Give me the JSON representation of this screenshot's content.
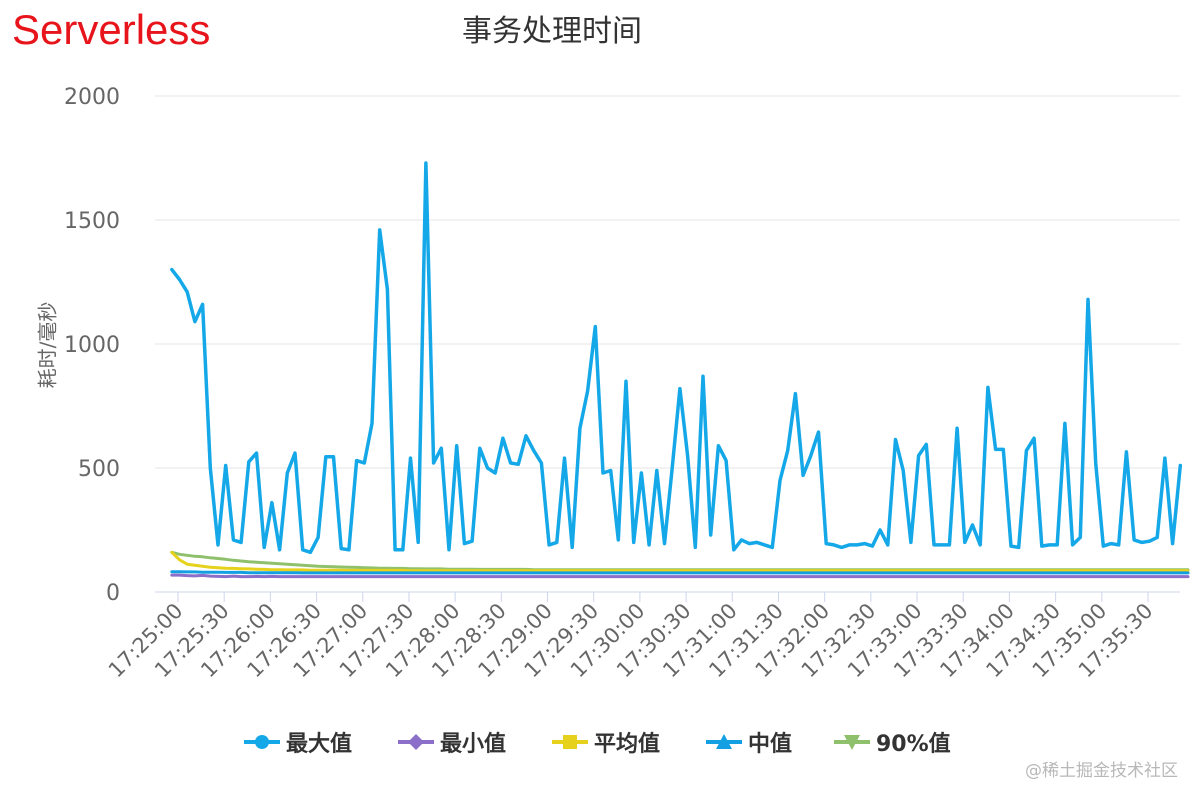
{
  "brand": "Serverless",
  "watermark": "@稀土掘金技术社区",
  "chart_data": {
    "type": "line",
    "title": "事务处理时间",
    "ylabel": "耗时/毫秒",
    "xlabel": "",
    "ylim": [
      0,
      2000
    ],
    "yticks": [
      0,
      500,
      1000,
      1500,
      2000
    ],
    "xticks": [
      "17:25:00",
      "17:25:30",
      "17:26:00",
      "17:26:30",
      "17:27:00",
      "17:27:30",
      "17:28:00",
      "17:28:30",
      "17:29:00",
      "17:29:30",
      "17:30:00",
      "17:30:30",
      "17:31:00",
      "17:31:30",
      "17:32:00",
      "17:32:30",
      "17:33:00",
      "17:33:30",
      "17:34:00",
      "17:34:30",
      "17:35:00",
      "17:35:30"
    ],
    "grid": true,
    "legend_position": "bottom",
    "x_start": "17:24:56",
    "x_step_seconds": 5,
    "series": [
      {
        "name": "最大值",
        "color": "#15a8e8",
        "marker": "circle",
        "values": [
          1300,
          1260,
          1210,
          1090,
          1160,
          500,
          190,
          510,
          210,
          200,
          525,
          560,
          180,
          360,
          170,
          480,
          560,
          170,
          160,
          220,
          545,
          545,
          175,
          170,
          530,
          520,
          680,
          1460,
          1220,
          170,
          170,
          540,
          200,
          1730,
          520,
          580,
          170,
          590,
          195,
          205,
          580,
          500,
          480,
          620,
          520,
          515,
          630,
          570,
          520,
          190,
          200,
          540,
          180,
          660,
          810,
          1070,
          480,
          490,
          210,
          850,
          200,
          480,
          190,
          490,
          195,
          500,
          820,
          550,
          180,
          870,
          230,
          590,
          530,
          170,
          210,
          195,
          200,
          190,
          180,
          450,
          570,
          800,
          470,
          550,
          645,
          195,
          190,
          180,
          190,
          190,
          195,
          185,
          250,
          190,
          615,
          490,
          200,
          550,
          595,
          190,
          190,
          190,
          660,
          200,
          270,
          190,
          825,
          575,
          575,
          185,
          180,
          570,
          620,
          185,
          190,
          190,
          680,
          190,
          220,
          1180,
          520,
          185,
          195,
          190,
          565,
          210,
          200,
          205,
          220,
          540,
          195,
          510
        ]
      },
      {
        "name": "最小值",
        "color": "#8b6fc8",
        "marker": "diamond",
        "values": [
          68,
          68,
          66,
          65,
          67,
          64,
          63,
          62,
          64,
          62,
          62,
          63,
          62,
          63,
          62,
          62,
          62,
          62,
          62,
          62,
          62,
          62,
          62,
          62,
          62,
          62,
          62,
          62,
          62,
          62,
          62,
          62,
          62,
          62,
          62,
          62,
          62,
          62,
          62,
          62,
          62,
          62,
          62,
          62,
          62,
          62,
          62,
          62,
          62,
          62,
          62,
          62,
          62,
          62,
          62,
          62,
          62,
          62,
          62,
          62,
          62,
          62,
          62,
          62,
          62,
          62,
          62,
          62,
          62,
          62,
          62,
          62,
          62,
          62,
          62,
          62,
          62,
          62,
          62,
          62,
          62,
          62,
          62,
          62,
          62,
          62,
          62,
          62,
          62,
          62,
          62,
          62,
          62,
          62,
          62,
          62,
          62,
          62,
          62,
          62,
          62,
          62,
          62,
          62,
          62,
          62,
          62,
          62,
          62,
          62,
          62,
          62,
          62,
          62,
          62,
          62,
          62,
          62,
          62,
          62,
          62,
          62,
          62,
          62,
          62,
          62,
          62,
          62,
          62,
          62,
          62,
          62,
          62
        ]
      },
      {
        "name": "平均值",
        "color": "#e6d21c",
        "marker": "square",
        "values": [
          160,
          130,
          112,
          108,
          104,
          100,
          98,
          96,
          95,
          94,
          93,
          92,
          91,
          90,
          90,
          89,
          89,
          89,
          88,
          88,
          88,
          88,
          88,
          87,
          87,
          87,
          87,
          87,
          87,
          87,
          87,
          86,
          86,
          86,
          86,
          86,
          86,
          86,
          86,
          86,
          86,
          86,
          86,
          86,
          86,
          86,
          86,
          86,
          86,
          86,
          86,
          86,
          86,
          86,
          86,
          86,
          86,
          86,
          86,
          86,
          86,
          86,
          86,
          86,
          86,
          86,
          86,
          86,
          86,
          86,
          86,
          86,
          86,
          86,
          86,
          86,
          86,
          86,
          86,
          86,
          86,
          86,
          86,
          86,
          86,
          86,
          86,
          86,
          86,
          86,
          86,
          86,
          86,
          86,
          86,
          86,
          86,
          86,
          86,
          86,
          86,
          86,
          86,
          86,
          86,
          86,
          86,
          86,
          86,
          86,
          86,
          86,
          86,
          86,
          86,
          86,
          86,
          86,
          86,
          86,
          86,
          86,
          86,
          86,
          86,
          86,
          86,
          86,
          86,
          86,
          86,
          86,
          86
        ]
      },
      {
        "name": "中值",
        "color": "#12a0e2",
        "marker": "triangle",
        "values": [
          82,
          82,
          81,
          81,
          80,
          80,
          80,
          79,
          79,
          79,
          78,
          78,
          78,
          78,
          78,
          78,
          78,
          77,
          77,
          77,
          77,
          77,
          77,
          77,
          77,
          77,
          77,
          77,
          77,
          77,
          77,
          77,
          77,
          77,
          77,
          77,
          77,
          77,
          77,
          77,
          77,
          77,
          77,
          77,
          77,
          77,
          77,
          77,
          77,
          77,
          77,
          77,
          77,
          77,
          77,
          77,
          77,
          77,
          77,
          77,
          77,
          77,
          77,
          77,
          77,
          77,
          77,
          77,
          77,
          77,
          77,
          77,
          77,
          77,
          77,
          77,
          77,
          77,
          77,
          77,
          77,
          77,
          77,
          77,
          77,
          77,
          77,
          77,
          77,
          77,
          77,
          77,
          77,
          77,
          77,
          77,
          77,
          77,
          77,
          77,
          77,
          77,
          77,
          77,
          77,
          77,
          77,
          77,
          77,
          77,
          77,
          77,
          77,
          77,
          77,
          77,
          77,
          77,
          77,
          77,
          77,
          77,
          77,
          77,
          77,
          77,
          77,
          77,
          77,
          77,
          77,
          77,
          77
        ]
      },
      {
        "name": "90%值",
        "color": "#8fc06c",
        "marker": "triangle-down",
        "values": [
          160,
          152,
          148,
          144,
          142,
          138,
          135,
          132,
          128,
          125,
          122,
          120,
          118,
          116,
          114,
          112,
          110,
          108,
          106,
          104,
          103,
          102,
          101,
          100,
          99,
          98,
          97,
          96,
          96,
          95,
          95,
          94,
          94,
          93,
          93,
          93,
          92,
          92,
          92,
          92,
          91,
          91,
          91,
          91,
          91,
          91,
          91,
          90,
          90,
          90,
          90,
          90,
          90,
          90,
          90,
          90,
          90,
          90,
          90,
          90,
          90,
          90,
          90,
          90,
          90,
          90,
          90,
          90,
          90,
          90,
          90,
          90,
          90,
          90,
          90,
          90,
          90,
          90,
          90,
          90,
          90,
          90,
          90,
          90,
          90,
          90,
          90,
          90,
          90,
          90,
          90,
          90,
          90,
          90,
          90,
          90,
          90,
          90,
          90,
          90,
          90,
          90,
          90,
          90,
          90,
          90,
          90,
          90,
          90,
          90,
          90,
          90,
          90,
          90,
          90,
          90,
          90,
          90,
          90,
          90,
          90,
          90,
          90,
          90,
          90,
          90,
          90,
          90,
          90,
          90,
          90,
          90,
          90
        ]
      }
    ]
  }
}
